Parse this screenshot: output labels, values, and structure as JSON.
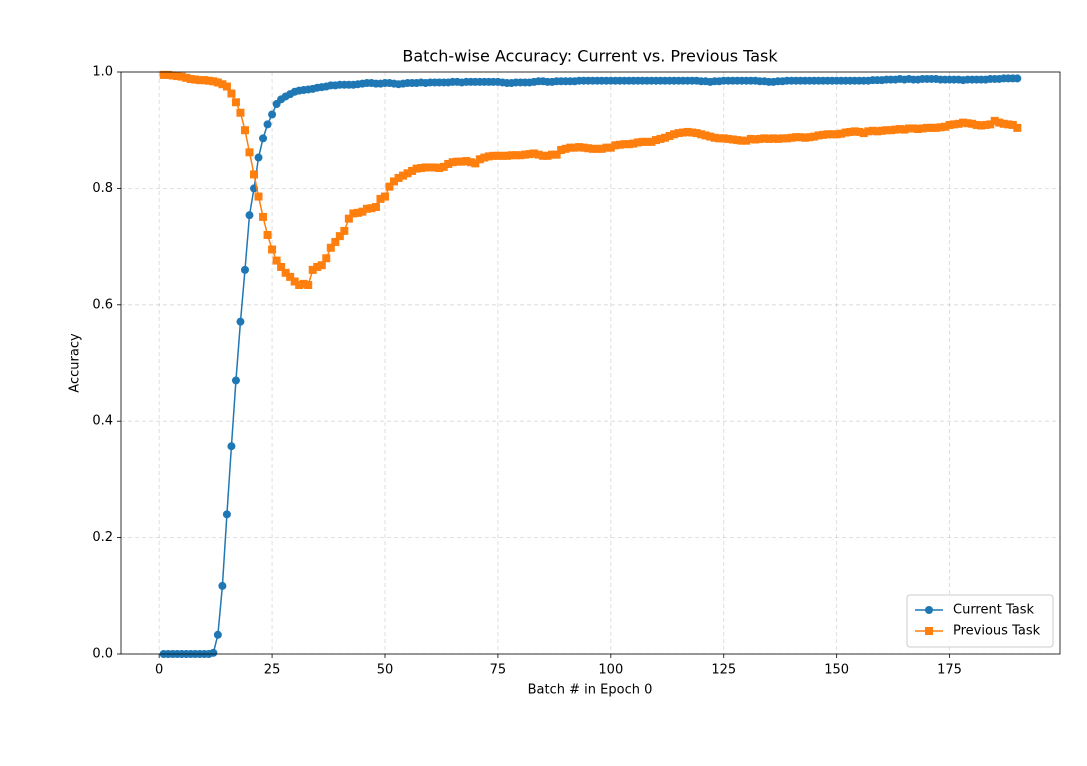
{
  "chart_data": {
    "type": "line",
    "title": "Batch-wise Accuracy: Current vs. Previous Task",
    "xlabel": "Batch # in Epoch 0",
    "ylabel": "Accuracy",
    "x": [
      1,
      2,
      3,
      4,
      5,
      6,
      7,
      8,
      9,
      10,
      11,
      12,
      13,
      14,
      15,
      16,
      17,
      18,
      19,
      20,
      21,
      22,
      23,
      24,
      25,
      26,
      27,
      28,
      29,
      30,
      31,
      32,
      33,
      34,
      35,
      36,
      37,
      38,
      39,
      40,
      41,
      42,
      43,
      44,
      45,
      46,
      47,
      48,
      49,
      50,
      51,
      52,
      53,
      54,
      55,
      56,
      57,
      58,
      59,
      60,
      61,
      62,
      63,
      64,
      65,
      66,
      67,
      68,
      69,
      70,
      71,
      72,
      73,
      74,
      75,
      76,
      77,
      78,
      79,
      80,
      81,
      82,
      83,
      84,
      85,
      86,
      87,
      88,
      89,
      90,
      91,
      92,
      93,
      94,
      95,
      96,
      97,
      98,
      99,
      100,
      101,
      102,
      103,
      104,
      105,
      106,
      107,
      108,
      109,
      110,
      111,
      112,
      113,
      114,
      115,
      116,
      117,
      118,
      119,
      120,
      121,
      122,
      123,
      124,
      125,
      126,
      127,
      128,
      129,
      130,
      131,
      132,
      133,
      134,
      135,
      136,
      137,
      138,
      139,
      140,
      141,
      142,
      143,
      144,
      145,
      146,
      147,
      148,
      149,
      150,
      151,
      152,
      153,
      154,
      155,
      156,
      157,
      158,
      159,
      160,
      161,
      162,
      163,
      164,
      165,
      166,
      167,
      168,
      169,
      170,
      171,
      172,
      173,
      174,
      175,
      176,
      177,
      178,
      179,
      180,
      181,
      182,
      183,
      184,
      185,
      186,
      187,
      188,
      189,
      190
    ],
    "series": [
      {
        "name": "Current Task",
        "color": "#1f77b4",
        "marker": "o",
        "values": [
          0,
          0,
          0,
          0,
          0,
          0,
          0,
          0,
          0,
          0,
          0,
          0.002,
          0.033,
          0.117,
          0.24,
          0.357,
          0.47,
          0.571,
          0.66,
          0.754,
          0.8,
          0.853,
          0.886,
          0.91,
          0.927,
          0.945,
          0.953,
          0.958,
          0.962,
          0.966,
          0.968,
          0.969,
          0.97,
          0.971,
          0.973,
          0.974,
          0.975,
          0.977,
          0.977,
          0.978,
          0.978,
          0.978,
          0.978,
          0.979,
          0.98,
          0.981,
          0.981,
          0.98,
          0.98,
          0.981,
          0.981,
          0.98,
          0.979,
          0.98,
          0.981,
          0.981,
          0.981,
          0.982,
          0.981,
          0.982,
          0.982,
          0.982,
          0.982,
          0.982,
          0.983,
          0.983,
          0.982,
          0.983,
          0.983,
          0.983,
          0.983,
          0.983,
          0.983,
          0.983,
          0.983,
          0.982,
          0.981,
          0.981,
          0.982,
          0.982,
          0.982,
          0.982,
          0.983,
          0.984,
          0.984,
          0.983,
          0.983,
          0.984,
          0.984,
          0.984,
          0.984,
          0.984,
          0.985,
          0.985,
          0.985,
          0.985,
          0.985,
          0.985,
          0.985,
          0.985,
          0.985,
          0.985,
          0.985,
          0.985,
          0.985,
          0.985,
          0.985,
          0.985,
          0.985,
          0.985,
          0.985,
          0.985,
          0.985,
          0.985,
          0.985,
          0.985,
          0.985,
          0.985,
          0.985,
          0.984,
          0.984,
          0.983,
          0.984,
          0.984,
          0.985,
          0.985,
          0.985,
          0.985,
          0.985,
          0.985,
          0.985,
          0.985,
          0.984,
          0.984,
          0.983,
          0.983,
          0.984,
          0.984,
          0.985,
          0.985,
          0.985,
          0.985,
          0.985,
          0.985,
          0.985,
          0.985,
          0.985,
          0.985,
          0.985,
          0.985,
          0.985,
          0.985,
          0.985,
          0.985,
          0.985,
          0.985,
          0.985,
          0.986,
          0.986,
          0.986,
          0.987,
          0.987,
          0.987,
          0.988,
          0.987,
          0.988,
          0.987,
          0.987,
          0.988,
          0.988,
          0.988,
          0.988,
          0.987,
          0.987,
          0.987,
          0.987,
          0.987,
          0.986,
          0.987,
          0.987,
          0.987,
          0.987,
          0.987,
          0.988,
          0.988,
          0.988,
          0.989,
          0.989,
          0.989,
          0.989
        ]
      },
      {
        "name": "Previous Task",
        "color": "#ff7f0e",
        "marker": "s",
        "values": [
          0.995,
          0.995,
          0.994,
          0.993,
          0.992,
          0.99,
          0.988,
          0.987,
          0.986,
          0.986,
          0.985,
          0.984,
          0.982,
          0.979,
          0.975,
          0.963,
          0.948,
          0.93,
          0.9,
          0.862,
          0.824,
          0.786,
          0.751,
          0.72,
          0.695,
          0.676,
          0.665,
          0.655,
          0.648,
          0.64,
          0.634,
          0.636,
          0.634,
          0.66,
          0.665,
          0.668,
          0.68,
          0.698,
          0.708,
          0.718,
          0.727,
          0.748,
          0.757,
          0.758,
          0.76,
          0.765,
          0.766,
          0.768,
          0.782,
          0.786,
          0.803,
          0.812,
          0.818,
          0.822,
          0.826,
          0.83,
          0.834,
          0.835,
          0.836,
          0.836,
          0.836,
          0.835,
          0.837,
          0.842,
          0.845,
          0.846,
          0.846,
          0.847,
          0.845,
          0.843,
          0.85,
          0.853,
          0.855,
          0.856,
          0.856,
          0.856,
          0.856,
          0.857,
          0.857,
          0.857,
          0.858,
          0.859,
          0.86,
          0.858,
          0.856,
          0.856,
          0.858,
          0.858,
          0.866,
          0.868,
          0.87,
          0.87,
          0.871,
          0.87,
          0.869,
          0.868,
          0.868,
          0.868,
          0.87,
          0.87,
          0.874,
          0.875,
          0.876,
          0.876,
          0.877,
          0.879,
          0.88,
          0.88,
          0.88,
          0.883,
          0.885,
          0.887,
          0.89,
          0.893,
          0.895,
          0.896,
          0.897,
          0.896,
          0.895,
          0.893,
          0.891,
          0.889,
          0.887,
          0.886,
          0.886,
          0.885,
          0.884,
          0.883,
          0.882,
          0.882,
          0.885,
          0.884,
          0.885,
          0.886,
          0.885,
          0.886,
          0.885,
          0.886,
          0.886,
          0.887,
          0.888,
          0.888,
          0.887,
          0.888,
          0.889,
          0.891,
          0.892,
          0.893,
          0.893,
          0.893,
          0.894,
          0.896,
          0.897,
          0.898,
          0.897,
          0.895,
          0.898,
          0.899,
          0.898,
          0.899,
          0.9,
          0.9,
          0.901,
          0.902,
          0.901,
          0.903,
          0.903,
          0.902,
          0.903,
          0.904,
          0.904,
          0.904,
          0.905,
          0.906,
          0.909,
          0.91,
          0.911,
          0.913,
          0.912,
          0.911,
          0.909,
          0.908,
          0.909,
          0.91,
          0.916,
          0.913,
          0.911,
          0.91,
          0.909,
          0.904
        ]
      }
    ],
    "xlim": [
      -8.45,
      199.45
    ],
    "xticks": [
      0,
      25,
      50,
      75,
      100,
      125,
      150,
      175
    ],
    "ylim": [
      0,
      1
    ],
    "yticks": [
      {
        "value": 0,
        "label": "0.0"
      },
      {
        "value": 0.2,
        "label": "0.2"
      },
      {
        "value": 0.4,
        "label": "0.4"
      },
      {
        "value": 0.6,
        "label": "0.6"
      },
      {
        "value": 0.8,
        "label": "0.8"
      },
      {
        "value": 1,
        "label": "1.0"
      }
    ],
    "grid": true,
    "legend": "lower right"
  }
}
